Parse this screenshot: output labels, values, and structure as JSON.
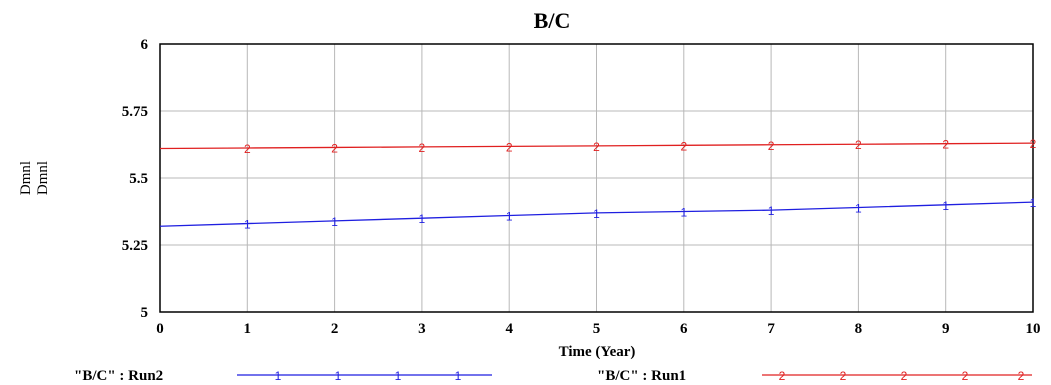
{
  "chart_data": {
    "type": "line",
    "title": "B/C",
    "xlabel": "Time (Year)",
    "ylabel": [
      "Dmnl",
      "Dmnl"
    ],
    "x": [
      0,
      1,
      2,
      3,
      4,
      5,
      6,
      7,
      8,
      9,
      10
    ],
    "xlim": [
      0,
      10
    ],
    "ylim": [
      5,
      6
    ],
    "x_ticks": [
      "0",
      "1",
      "2",
      "3",
      "4",
      "5",
      "6",
      "7",
      "8",
      "9",
      "10"
    ],
    "y_ticks": [
      {
        "value": 5,
        "label": "5"
      },
      {
        "value": 5.25,
        "label": "5.25"
      },
      {
        "value": 5.5,
        "label": "5.5"
      },
      {
        "value": 5.75,
        "label": "5.75"
      },
      {
        "value": 6,
        "label": "6"
      }
    ],
    "grid": true,
    "legend_placement": "bottom",
    "series": [
      {
        "name": "\"B/C\" : Run2",
        "marker": "1",
        "color": "#1f1fe0",
        "values": [
          5.32,
          5.33,
          5.34,
          5.35,
          5.36,
          5.37,
          5.375,
          5.38,
          5.39,
          5.4,
          5.41
        ]
      },
      {
        "name": "\"B/C\" : Run1",
        "marker": "2",
        "color": "#e02020",
        "values": [
          5.61,
          5.612,
          5.614,
          5.616,
          5.618,
          5.62,
          5.622,
          5.624,
          5.626,
          5.628,
          5.63
        ]
      }
    ]
  }
}
